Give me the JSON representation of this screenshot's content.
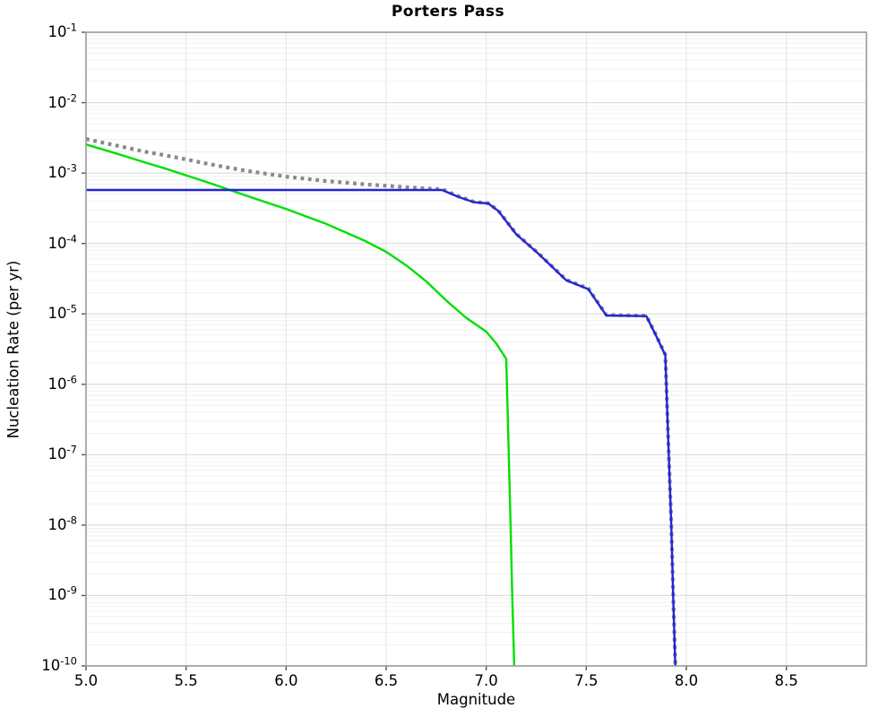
{
  "figure": {
    "title": "Porters Pass",
    "xlabel": "Magnitude",
    "ylabel": "Nucleation Rate (per yr)"
  },
  "chart_data": {
    "type": "line",
    "title": "Porters Pass",
    "xlabel": "Magnitude",
    "ylabel": "Nucleation Rate (per yr)",
    "x_scale": "linear",
    "y_scale": "log",
    "xlim": [
      5.0,
      8.9
    ],
    "ylim": [
      1e-10,
      0.1
    ],
    "x_ticks": [
      5.0,
      5.5,
      6.0,
      6.5,
      7.0,
      7.5,
      8.0,
      8.5
    ],
    "y_tick_exponents": [
      -1,
      -2,
      -3,
      -4,
      -5,
      -6,
      -7,
      -8,
      -9,
      -10
    ],
    "grid": {
      "major_color": "#dcdcdc",
      "minor_color": "#f0f0f0",
      "vertical_color": "#e4e4e4"
    },
    "border_color": "#9a9a9a",
    "legend": "none",
    "series": [
      {
        "name": "green-solid-curve",
        "color": "#00df00",
        "style": "solid",
        "width": 2.4,
        "points": [
          [
            5.0,
            0.00255
          ],
          [
            5.1,
            0.0021
          ],
          [
            5.2,
            0.00172
          ],
          [
            5.3,
            0.0014
          ],
          [
            5.4,
            0.00115
          ],
          [
            5.5,
            0.00093
          ],
          [
            5.6,
            0.00075
          ],
          [
            5.7,
            0.0006
          ],
          [
            5.8,
            0.00048
          ],
          [
            5.9,
            0.000385
          ],
          [
            6.0,
            0.00031
          ],
          [
            6.1,
            0.000242
          ],
          [
            6.2,
            0.00019
          ],
          [
            6.3,
            0.000143
          ],
          [
            6.4,
            0.000107
          ],
          [
            6.5,
            7.6e-05
          ],
          [
            6.6,
            4.9e-05
          ],
          [
            6.7,
            2.9e-05
          ],
          [
            6.8,
            1.55e-05
          ],
          [
            6.9,
            8.8e-06
          ],
          [
            7.0,
            5.6e-06
          ],
          [
            7.05,
            3.8e-06
          ],
          [
            7.1,
            2.3e-06
          ],
          [
            7.11,
            2e-07
          ],
          [
            7.12,
            1.5e-08
          ],
          [
            7.13,
            1e-09
          ],
          [
            7.14,
            1e-10
          ]
        ]
      },
      {
        "name": "gray-dotted-curve",
        "color": "#8a8a8a",
        "style": "dotted",
        "width": 4.2,
        "points": [
          [
            5.0,
            0.00305
          ],
          [
            5.1,
            0.00265
          ],
          [
            5.2,
            0.0023
          ],
          [
            5.3,
            0.002
          ],
          [
            5.4,
            0.00178
          ],
          [
            5.5,
            0.00156
          ],
          [
            5.6,
            0.00137
          ],
          [
            5.7,
            0.00121
          ],
          [
            5.8,
            0.00108
          ],
          [
            5.9,
            0.00098
          ],
          [
            6.0,
            0.00089
          ],
          [
            6.1,
            0.00083
          ],
          [
            6.2,
            0.00077
          ],
          [
            6.3,
            0.00073
          ],
          [
            6.4,
            0.00069
          ],
          [
            6.5,
            0.00066
          ],
          [
            6.6,
            0.00063
          ],
          [
            6.7,
            0.000605
          ],
          [
            6.78,
            0.00059
          ],
          [
            6.86,
            0.00047
          ],
          [
            6.94,
            0.00039
          ],
          [
            7.01,
            0.000372
          ],
          [
            7.06,
            0.000295
          ],
          [
            7.15,
            0.000137
          ],
          [
            7.26,
            7.3e-05
          ],
          [
            7.4,
            3.05e-05
          ],
          [
            7.51,
            2.3e-05
          ],
          [
            7.6,
            9.7e-06
          ],
          [
            7.8,
            9.4e-06
          ],
          [
            7.84,
            5.6e-06
          ],
          [
            7.895,
            2.65e-06
          ],
          [
            7.91,
            1.55e-07
          ],
          [
            7.925,
            1.05e-08
          ],
          [
            7.935,
            8.5e-10
          ],
          [
            7.945,
            1.05e-10
          ]
        ]
      },
      {
        "name": "blue-solid-curve",
        "color": "#2424d8",
        "style": "solid",
        "width": 2.4,
        "points": [
          [
            5.0,
            0.000575
          ],
          [
            6.78,
            0.000575
          ],
          [
            6.86,
            0.00046
          ],
          [
            6.94,
            0.000385
          ],
          [
            7.01,
            0.00037
          ],
          [
            7.06,
            0.00029
          ],
          [
            7.15,
            0.000135
          ],
          [
            7.26,
            7.2e-05
          ],
          [
            7.4,
            3e-05
          ],
          [
            7.51,
            2.25e-05
          ],
          [
            7.6,
            9.5e-06
          ],
          [
            7.8,
            9.3e-06
          ],
          [
            7.84,
            5.5e-06
          ],
          [
            7.895,
            2.6e-06
          ],
          [
            7.91,
            1.5e-07
          ],
          [
            7.925,
            1e-08
          ],
          [
            7.935,
            8e-10
          ],
          [
            7.945,
            1e-10
          ]
        ]
      }
    ]
  }
}
